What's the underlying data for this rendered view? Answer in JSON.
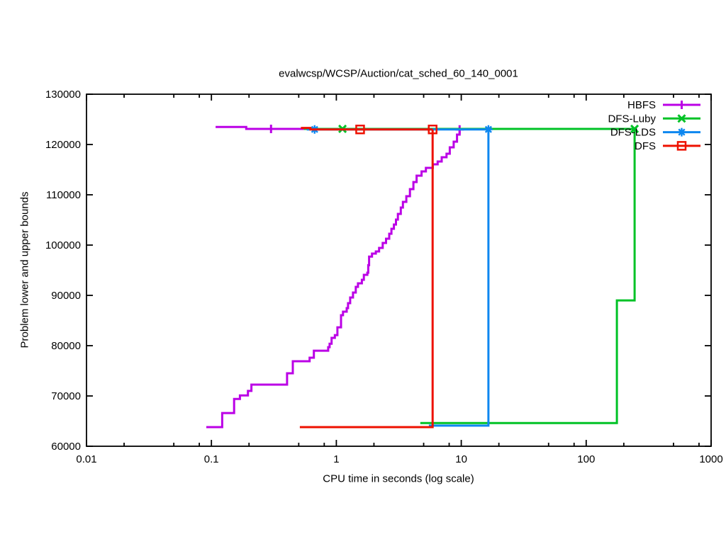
{
  "chart_data": {
    "type": "line",
    "title": "evalwcsp/WCSP/Auction/cat_sched_60_140_0001",
    "xlabel": "CPU time in seconds (log scale)",
    "ylabel": "Problem lower and upper bounds",
    "x_scale": "log",
    "xlim": [
      0.01,
      1000
    ],
    "ylim": [
      60000,
      130000
    ],
    "grid": false,
    "legend_position": "top-right-inside",
    "x_ticks": [
      {
        "v": 0.01,
        "label": "0.01"
      },
      {
        "v": 0.1,
        "label": "0.1"
      },
      {
        "v": 1,
        "label": "1"
      },
      {
        "v": 10,
        "label": "10"
      },
      {
        "v": 100,
        "label": "100"
      },
      {
        "v": 1000,
        "label": "1000"
      }
    ],
    "x_minor_multipliers": [
      2,
      5,
      8
    ],
    "y_ticks": [
      {
        "v": 60000,
        "label": "60000"
      },
      {
        "v": 70000,
        "label": "70000"
      },
      {
        "v": 80000,
        "label": "80000"
      },
      {
        "v": 90000,
        "label": "90000"
      },
      {
        "v": 100000,
        "label": "100000"
      },
      {
        "v": 110000,
        "label": "110000"
      },
      {
        "v": 120000,
        "label": "120000"
      },
      {
        "v": 130000,
        "label": "130000"
      }
    ],
    "series": [
      {
        "name": "HBFS",
        "color": "#bb00e6",
        "marker": "plus",
        "upper_bound": [
          [
            0.108,
            123500
          ],
          [
            0.19,
            123100
          ],
          [
            9.7,
            123000
          ]
        ],
        "lower_bound": [
          [
            0.091,
            63800
          ],
          [
            0.122,
            66600
          ],
          [
            0.152,
            69400
          ],
          [
            0.169,
            70100
          ],
          [
            0.196,
            71000
          ],
          [
            0.209,
            72250
          ],
          [
            0.403,
            74500
          ],
          [
            0.448,
            76900
          ],
          [
            0.611,
            77600
          ],
          [
            0.661,
            79000
          ],
          [
            0.861,
            79700
          ],
          [
            0.883,
            80400
          ],
          [
            0.916,
            81550
          ],
          [
            0.973,
            82100
          ],
          [
            1.02,
            83650
          ],
          [
            1.09,
            86050
          ],
          [
            1.13,
            86760
          ],
          [
            1.21,
            87460
          ],
          [
            1.24,
            88450
          ],
          [
            1.29,
            89580
          ],
          [
            1.36,
            90560
          ],
          [
            1.43,
            91690
          ],
          [
            1.49,
            92390
          ],
          [
            1.6,
            93100
          ],
          [
            1.66,
            94080
          ],
          [
            1.77,
            94500
          ],
          [
            1.8,
            96000
          ],
          [
            1.83,
            97700
          ],
          [
            1.93,
            98310
          ],
          [
            2.07,
            98730
          ],
          [
            2.2,
            99440
          ],
          [
            2.35,
            100420
          ],
          [
            2.5,
            101270
          ],
          [
            2.65,
            102250
          ],
          [
            2.76,
            103240
          ],
          [
            2.89,
            104080
          ],
          [
            3.0,
            105070
          ],
          [
            3.11,
            106200
          ],
          [
            3.28,
            107470
          ],
          [
            3.41,
            108590
          ],
          [
            3.63,
            109720
          ],
          [
            3.88,
            111130
          ],
          [
            4.14,
            112540
          ],
          [
            4.39,
            113800
          ],
          [
            4.81,
            114650
          ],
          [
            5.21,
            115350
          ],
          [
            5.92,
            116060
          ],
          [
            6.47,
            116620
          ],
          [
            6.97,
            117460
          ],
          [
            7.62,
            118170
          ],
          [
            8.09,
            119440
          ],
          [
            8.7,
            120570
          ],
          [
            9.24,
            121970
          ],
          [
            9.7,
            123000
          ]
        ],
        "marker_points": [
          [
            0.3,
            123100
          ],
          [
            9.7,
            123000
          ]
        ]
      },
      {
        "name": "DFS-Luby",
        "color": "#00c226",
        "marker": "cross",
        "upper_bound": [
          [
            0.55,
            123100
          ],
          [
            244,
            123100
          ]
        ],
        "lower_bound": [
          [
            4.7,
            64600
          ],
          [
            176,
            89000
          ],
          [
            244,
            123100
          ]
        ],
        "marker_points": [
          [
            1.12,
            123100
          ],
          [
            244,
            123100
          ]
        ]
      },
      {
        "name": "DFS-LDS",
        "color": "#0d87f0",
        "marker": "star",
        "upper_bound": [
          [
            0.58,
            123000
          ],
          [
            16.5,
            123000
          ]
        ],
        "lower_bound": [
          [
            5.5,
            64100
          ],
          [
            16.5,
            123000
          ]
        ],
        "marker_points": [
          [
            0.67,
            123000
          ],
          [
            16.5,
            123000
          ]
        ]
      },
      {
        "name": "DFS",
        "color": "#ee1100",
        "marker": "square",
        "upper_bound": [
          [
            0.52,
            123300
          ],
          [
            0.62,
            123000
          ],
          [
            5.9,
            123000
          ]
        ],
        "lower_bound": [
          [
            0.51,
            63800
          ],
          [
            5.9,
            123000
          ]
        ],
        "marker_points": [
          [
            1.55,
            123000
          ],
          [
            5.9,
            123000
          ]
        ]
      }
    ]
  }
}
